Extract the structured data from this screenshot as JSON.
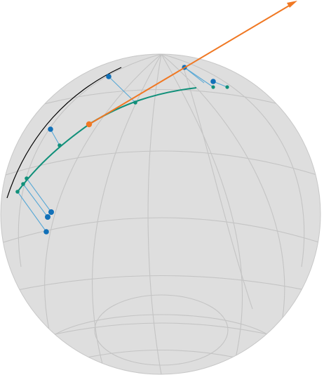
{
  "figure": {
    "description_free": true
  },
  "colors": {
    "sphere_fill": "#dcdcdc",
    "grid": "#c4c4c4",
    "observed_points": "#1170b8",
    "model_curve": "#11907a",
    "residual_links": "#5aa9d6",
    "vector": "#f07823",
    "arc": "#000000"
  }
}
